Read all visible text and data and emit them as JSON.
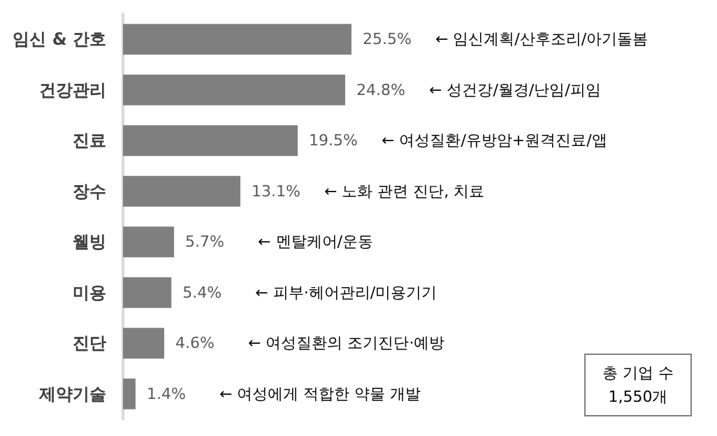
{
  "chart_data": {
    "type": "bar",
    "orientation": "horizontal",
    "categories": [
      "임신 & 간호",
      "건강관리",
      "진료",
      "장수",
      "웰빙",
      "미용",
      "진단",
      "제약기술"
    ],
    "values": [
      25.5,
      24.8,
      19.5,
      13.1,
      5.7,
      5.4,
      4.6,
      1.4
    ],
    "value_labels": [
      "25.5%",
      "24.8%",
      "19.5%",
      "13.1%",
      "5.7%",
      "5.4%",
      "4.6%",
      "1.4%"
    ],
    "color": "#7f7f7f",
    "annotations": [
      "← 임신계획/산후조리/아기돌봄",
      "← 성건강/월경/난임/피임",
      "← 여성질환/유방암+원격진료/앱",
      "← 노화 관련 진단, 치료",
      "← 멘탈케어/운동",
      "← 피부·헤어관리/미용기기",
      "← 여성질환의 조기진단·예방",
      "← 여성에게 적합한 약물 개발",
      "총 기업 수\n1,550개"
    ]
  }
}
